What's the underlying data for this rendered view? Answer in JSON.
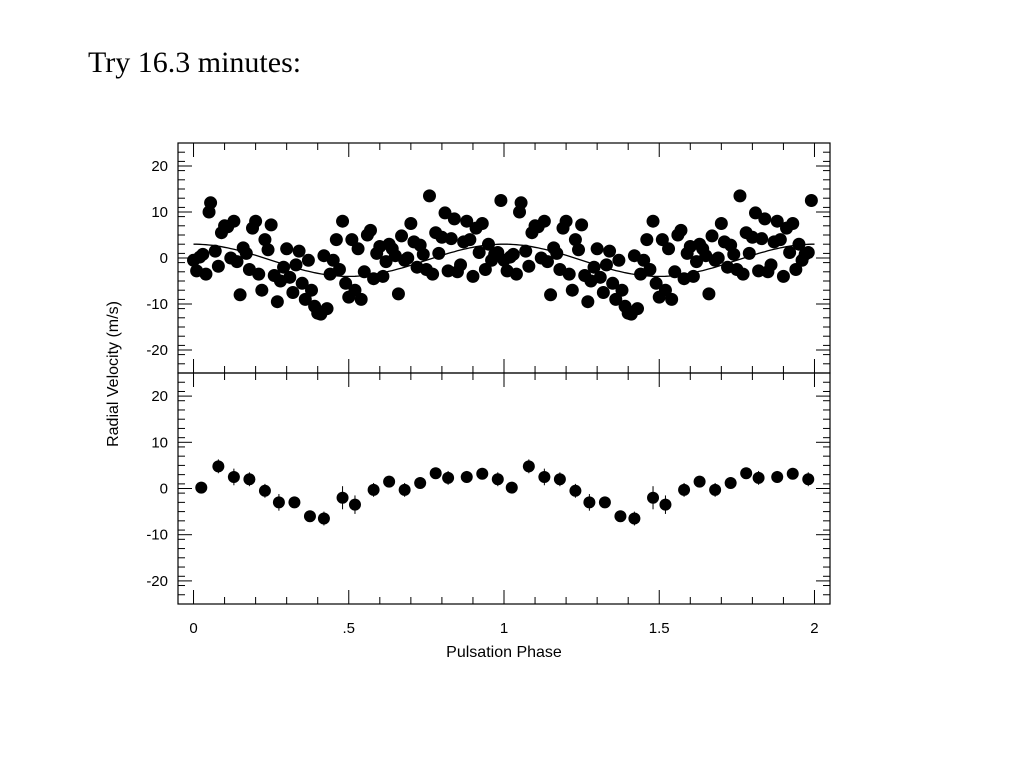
{
  "slide": {
    "title": "Try 16.3 minutes:"
  },
  "chart_data": {
    "type": "scatter",
    "xlabel": "Pulsation Phase",
    "ylabel": "Radial Velocity (m/s)",
    "xlim": [
      -0.05,
      2.05
    ],
    "x_ticks": [
      0,
      0.5,
      1,
      1.5,
      2
    ],
    "x_tick_labels": [
      "0",
      ".5",
      "1",
      "1.5",
      "2"
    ],
    "panels": [
      {
        "name": "raw",
        "ylim": [
          -25,
          25
        ],
        "y_ticks": [
          20,
          10,
          0,
          -10,
          -20
        ],
        "y_tick_labels": [
          "20",
          "10",
          "0",
          "-10",
          "-20"
        ],
        "fit_curve": {
          "amplitude": 3.5,
          "offset": -0.5,
          "phase": 0.45
        },
        "points": [
          [
            0.0,
            -0.5
          ],
          [
            0.01,
            -2.8
          ],
          [
            0.02,
            0.2
          ],
          [
            0.03,
            0.8
          ],
          [
            0.04,
            -3.5
          ],
          [
            0.05,
            10.0
          ],
          [
            0.055,
            12.0
          ],
          [
            0.07,
            1.5
          ],
          [
            0.08,
            -1.8
          ],
          [
            0.09,
            5.5
          ],
          [
            0.1,
            7.0
          ],
          [
            0.11,
            6.8
          ],
          [
            0.12,
            0.0
          ],
          [
            0.13,
            8.0
          ],
          [
            0.14,
            -0.8
          ],
          [
            0.15,
            -8.0
          ],
          [
            0.16,
            2.2
          ],
          [
            0.17,
            1.0
          ],
          [
            0.18,
            -2.5
          ],
          [
            0.19,
            6.5
          ],
          [
            0.2,
            8.0
          ],
          [
            0.21,
            -3.5
          ],
          [
            0.22,
            -7.0
          ],
          [
            0.23,
            4.0
          ],
          [
            0.24,
            1.8
          ],
          [
            0.25,
            7.2
          ],
          [
            0.26,
            -3.8
          ],
          [
            0.27,
            -9.5
          ],
          [
            0.28,
            -5.0
          ],
          [
            0.29,
            -2.0
          ],
          [
            0.3,
            2.0
          ],
          [
            0.31,
            -4.2
          ],
          [
            0.32,
            -7.5
          ],
          [
            0.33,
            -1.5
          ],
          [
            0.34,
            1.5
          ],
          [
            0.35,
            -5.5
          ],
          [
            0.36,
            -9.0
          ],
          [
            0.37,
            -0.5
          ],
          [
            0.38,
            -7.0
          ],
          [
            0.39,
            -10.5
          ],
          [
            0.4,
            -12.0
          ],
          [
            0.41,
            -12.2
          ],
          [
            0.42,
            0.5
          ],
          [
            0.43,
            -11.0
          ],
          [
            0.44,
            -3.5
          ],
          [
            0.45,
            -0.5
          ],
          [
            0.46,
            4.0
          ],
          [
            0.47,
            -2.5
          ],
          [
            0.48,
            8.0
          ],
          [
            0.49,
            -5.5
          ],
          [
            0.5,
            -8.5
          ],
          [
            0.51,
            4.0
          ],
          [
            0.52,
            -7.0
          ],
          [
            0.53,
            2.0
          ],
          [
            0.54,
            -9.0
          ],
          [
            0.55,
            -3.0
          ],
          [
            0.56,
            5.0
          ],
          [
            0.57,
            6.0
          ],
          [
            0.58,
            -4.5
          ],
          [
            0.59,
            1.0
          ],
          [
            0.6,
            2.5
          ],
          [
            0.61,
            -4.0
          ],
          [
            0.62,
            -0.8
          ],
          [
            0.63,
            3.0
          ],
          [
            0.64,
            2.0
          ],
          [
            0.65,
            0.5
          ],
          [
            0.66,
            -7.8
          ],
          [
            0.67,
            4.8
          ],
          [
            0.68,
            -0.5
          ],
          [
            0.69,
            0.0
          ],
          [
            0.7,
            7.5
          ],
          [
            0.71,
            3.5
          ],
          [
            0.72,
            -2.0
          ],
          [
            0.73,
            2.8
          ],
          [
            0.74,
            0.8
          ],
          [
            0.75,
            -2.5
          ],
          [
            0.76,
            13.5
          ],
          [
            0.77,
            -3.5
          ],
          [
            0.78,
            5.5
          ],
          [
            0.79,
            1.0
          ],
          [
            0.8,
            4.5
          ],
          [
            0.81,
            9.8
          ],
          [
            0.82,
            -2.8
          ],
          [
            0.83,
            4.2
          ],
          [
            0.84,
            8.5
          ],
          [
            0.85,
            -3.0
          ],
          [
            0.86,
            -1.5
          ],
          [
            0.87,
            3.5
          ],
          [
            0.88,
            8.0
          ],
          [
            0.89,
            4.0
          ],
          [
            0.9,
            -4.0
          ],
          [
            0.91,
            6.5
          ],
          [
            0.92,
            1.2
          ],
          [
            0.93,
            7.5
          ],
          [
            0.94,
            -2.5
          ],
          [
            0.95,
            3.0
          ],
          [
            0.96,
            -0.5
          ],
          [
            0.97,
            0.8
          ],
          [
            0.98,
            1.2
          ],
          [
            0.99,
            12.5
          ],
          [
            1.0,
            -0.5
          ],
          [
            1.01,
            -2.8
          ],
          [
            1.02,
            0.2
          ],
          [
            1.03,
            0.8
          ],
          [
            1.04,
            -3.5
          ],
          [
            1.05,
            10.0
          ],
          [
            1.055,
            12.0
          ],
          [
            1.07,
            1.5
          ],
          [
            1.08,
            -1.8
          ],
          [
            1.09,
            5.5
          ],
          [
            1.1,
            7.0
          ],
          [
            1.11,
            6.8
          ],
          [
            1.12,
            0.0
          ],
          [
            1.13,
            8.0
          ],
          [
            1.14,
            -0.8
          ],
          [
            1.15,
            -8.0
          ],
          [
            1.16,
            2.2
          ],
          [
            1.17,
            1.0
          ],
          [
            1.18,
            -2.5
          ],
          [
            1.19,
            6.5
          ],
          [
            1.2,
            8.0
          ],
          [
            1.21,
            -3.5
          ],
          [
            1.22,
            -7.0
          ],
          [
            1.23,
            4.0
          ],
          [
            1.24,
            1.8
          ],
          [
            1.25,
            7.2
          ],
          [
            1.26,
            -3.8
          ],
          [
            1.27,
            -9.5
          ],
          [
            1.28,
            -5.0
          ],
          [
            1.29,
            -2.0
          ],
          [
            1.3,
            2.0
          ],
          [
            1.31,
            -4.2
          ],
          [
            1.32,
            -7.5
          ],
          [
            1.33,
            -1.5
          ],
          [
            1.34,
            1.5
          ],
          [
            1.35,
            -5.5
          ],
          [
            1.36,
            -9.0
          ],
          [
            1.37,
            -0.5
          ],
          [
            1.38,
            -7.0
          ],
          [
            1.39,
            -10.5
          ],
          [
            1.4,
            -12.0
          ],
          [
            1.41,
            -12.2
          ],
          [
            1.42,
            0.5
          ],
          [
            1.43,
            -11.0
          ],
          [
            1.44,
            -3.5
          ],
          [
            1.45,
            -0.5
          ],
          [
            1.46,
            4.0
          ],
          [
            1.47,
            -2.5
          ],
          [
            1.48,
            8.0
          ],
          [
            1.49,
            -5.5
          ],
          [
            1.5,
            -8.5
          ],
          [
            1.51,
            4.0
          ],
          [
            1.52,
            -7.0
          ],
          [
            1.53,
            2.0
          ],
          [
            1.54,
            -9.0
          ],
          [
            1.55,
            -3.0
          ],
          [
            1.56,
            5.0
          ],
          [
            1.57,
            6.0
          ],
          [
            1.58,
            -4.5
          ],
          [
            1.59,
            1.0
          ],
          [
            1.6,
            2.5
          ],
          [
            1.61,
            -4.0
          ],
          [
            1.62,
            -0.8
          ],
          [
            1.63,
            3.0
          ],
          [
            1.64,
            2.0
          ],
          [
            1.65,
            0.5
          ],
          [
            1.66,
            -7.8
          ],
          [
            1.67,
            4.8
          ],
          [
            1.68,
            -0.5
          ],
          [
            1.69,
            0.0
          ],
          [
            1.7,
            7.5
          ],
          [
            1.71,
            3.5
          ],
          [
            1.72,
            -2.0
          ],
          [
            1.73,
            2.8
          ],
          [
            1.74,
            0.8
          ],
          [
            1.75,
            -2.5
          ],
          [
            1.76,
            13.5
          ],
          [
            1.77,
            -3.5
          ],
          [
            1.78,
            5.5
          ],
          [
            1.79,
            1.0
          ],
          [
            1.8,
            4.5
          ],
          [
            1.81,
            9.8
          ],
          [
            1.82,
            -2.8
          ],
          [
            1.83,
            4.2
          ],
          [
            1.84,
            8.5
          ],
          [
            1.85,
            -3.0
          ],
          [
            1.86,
            -1.5
          ],
          [
            1.87,
            3.5
          ],
          [
            1.88,
            8.0
          ],
          [
            1.89,
            4.0
          ],
          [
            1.9,
            -4.0
          ],
          [
            1.91,
            6.5
          ],
          [
            1.92,
            1.2
          ],
          [
            1.93,
            7.5
          ],
          [
            1.94,
            -2.5
          ],
          [
            1.95,
            3.0
          ],
          [
            1.96,
            -0.5
          ],
          [
            1.97,
            0.8
          ],
          [
            1.98,
            1.2
          ],
          [
            1.99,
            12.5
          ]
        ]
      },
      {
        "name": "binned",
        "ylim": [
          -25,
          25
        ],
        "y_ticks": [
          20,
          10,
          0,
          -10,
          -20
        ],
        "y_tick_labels": [
          "20",
          "10",
          "0",
          "-10",
          "-20"
        ],
        "points": [
          [
            0.025,
            0.2,
            0.8
          ],
          [
            0.08,
            4.8,
            1.5
          ],
          [
            0.13,
            2.5,
            1.8
          ],
          [
            0.18,
            2.0,
            1.5
          ],
          [
            0.23,
            -0.5,
            1.5
          ],
          [
            0.275,
            -3.0,
            1.8
          ],
          [
            0.325,
            -3.0,
            1.2
          ],
          [
            0.375,
            -6.0,
            1.2
          ],
          [
            0.42,
            -6.5,
            1.5
          ],
          [
            0.48,
            -2.0,
            2.5
          ],
          [
            0.52,
            -3.5,
            2.0
          ],
          [
            0.58,
            -0.3,
            1.5
          ],
          [
            0.63,
            1.5,
            1.0
          ],
          [
            0.68,
            -0.3,
            1.5
          ],
          [
            0.73,
            1.2,
            1.0
          ],
          [
            0.78,
            3.3,
            1.2
          ],
          [
            0.82,
            2.3,
            1.5
          ],
          [
            0.88,
            2.5,
            1.3
          ],
          [
            0.93,
            3.2,
            1.0
          ],
          [
            0.98,
            2.0,
            1.5
          ],
          [
            1.025,
            0.2,
            0.8
          ],
          [
            1.08,
            4.8,
            1.5
          ],
          [
            1.13,
            2.5,
            1.8
          ],
          [
            1.18,
            2.0,
            1.5
          ],
          [
            1.23,
            -0.5,
            1.5
          ],
          [
            1.275,
            -3.0,
            1.8
          ],
          [
            1.325,
            -3.0,
            1.2
          ],
          [
            1.375,
            -6.0,
            1.2
          ],
          [
            1.42,
            -6.5,
            1.5
          ],
          [
            1.48,
            -2.0,
            2.5
          ],
          [
            1.52,
            -3.5,
            2.0
          ],
          [
            1.58,
            -0.3,
            1.5
          ],
          [
            1.63,
            1.5,
            1.0
          ],
          [
            1.68,
            -0.3,
            1.5
          ],
          [
            1.73,
            1.2,
            1.0
          ],
          [
            1.78,
            3.3,
            1.2
          ],
          [
            1.82,
            2.3,
            1.5
          ],
          [
            1.88,
            2.5,
            1.3
          ],
          [
            1.93,
            3.2,
            1.0
          ],
          [
            1.98,
            2.0,
            1.5
          ]
        ]
      }
    ]
  }
}
